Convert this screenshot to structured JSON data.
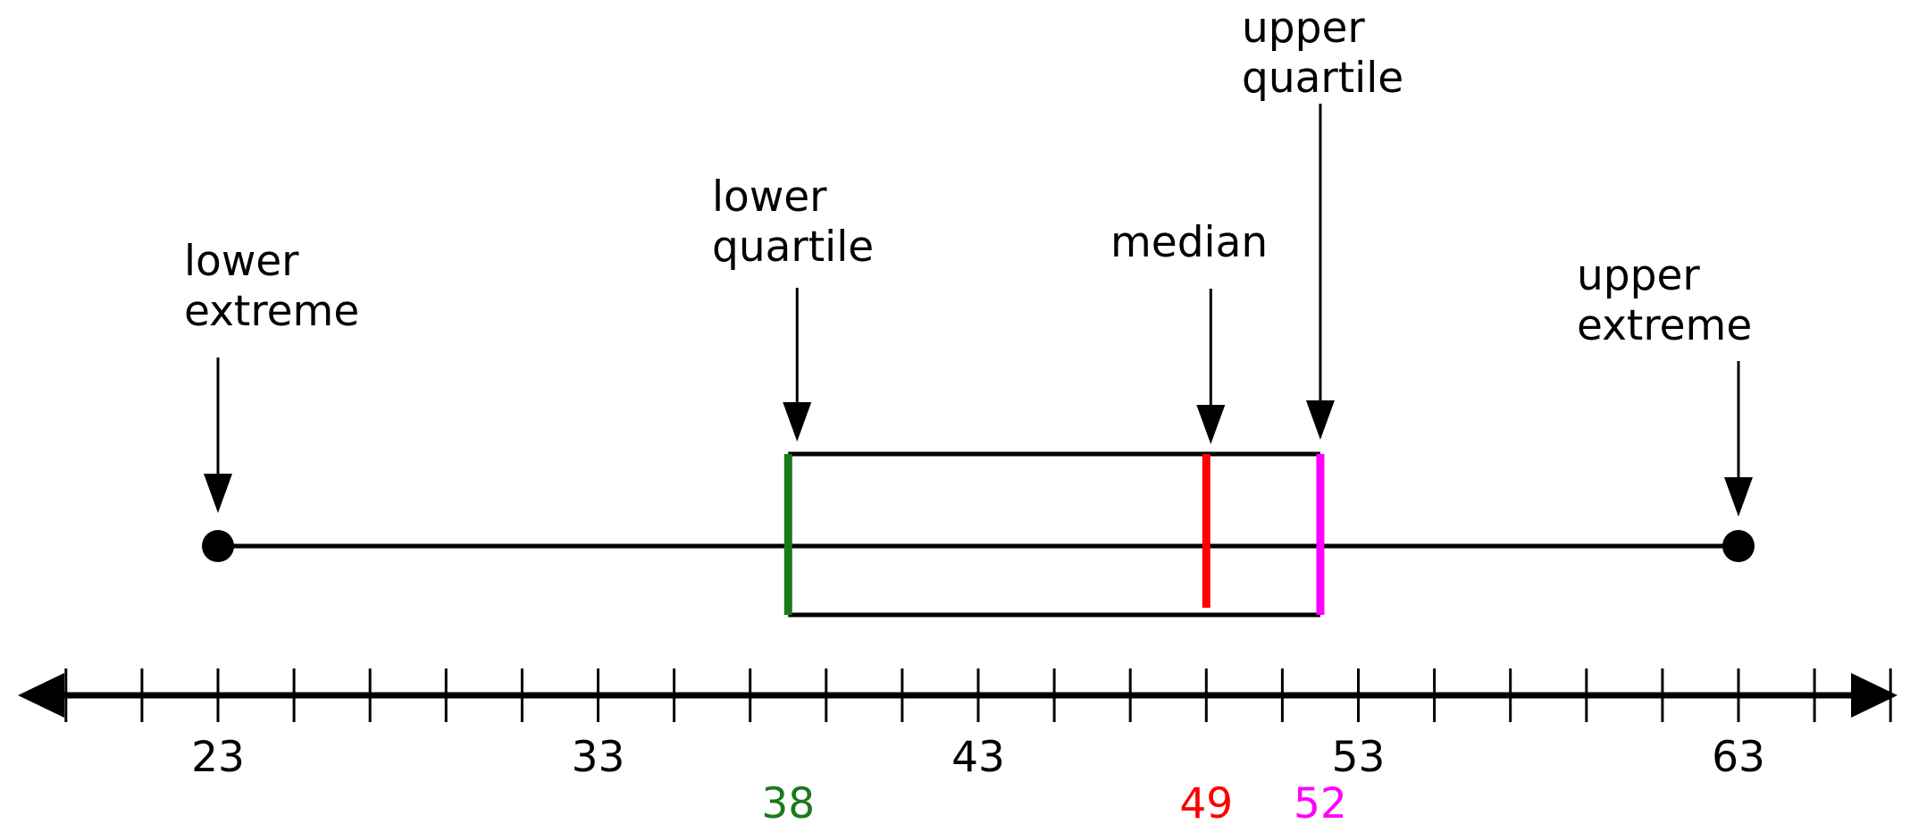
{
  "chart_data": {
    "type": "box",
    "xlim": [
      18,
      68
    ],
    "tick_step": 2,
    "tick_labels": [
      23,
      33,
      43,
      53,
      63
    ],
    "box": {
      "min": 23,
      "q1": 38,
      "median": 49,
      "q3": 52,
      "max": 63
    },
    "value_labels": [
      {
        "key": "q1",
        "text": "38"
      },
      {
        "key": "median",
        "text": "49"
      },
      {
        "key": "q3",
        "text": "52"
      }
    ],
    "annotations": [
      {
        "key": "min",
        "lines": [
          "lower",
          "extreme"
        ]
      },
      {
        "key": "q1",
        "lines": [
          "lower",
          "quartile"
        ]
      },
      {
        "key": "median",
        "lines": [
          "median"
        ]
      },
      {
        "key": "q3",
        "lines": [
          "upper",
          "quartile"
        ]
      },
      {
        "key": "max",
        "lines": [
          "upper",
          "extreme"
        ]
      }
    ],
    "colors": {
      "q1": "#1a7a1a",
      "median": "#ff0000",
      "q3": "#ff00ff",
      "line": "#000000"
    }
  }
}
